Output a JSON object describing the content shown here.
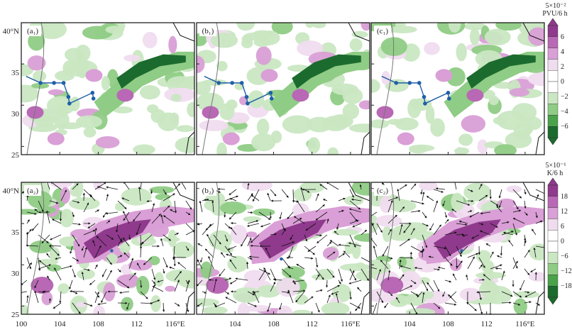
{
  "rows": [
    {
      "units_line1": "5×10⁻²",
      "units_line2": "PVU/6 h",
      "panels": [
        {
          "label": "(a₁)"
        },
        {
          "label": "(b₁)"
        },
        {
          "label": "(c₁)"
        }
      ],
      "colorbar_ticks": [
        "6",
        "4",
        "2",
        "0",
        "−2",
        "−4",
        "−6"
      ]
    },
    {
      "units_line1": "5×10⁻¹",
      "units_line2": "K/6 h",
      "panels": [
        {
          "label": "(a₂)"
        },
        {
          "label": "(b₂)"
        },
        {
          "label": "(c₂)"
        }
      ],
      "colorbar_ticks": [
        "18",
        "12",
        "6",
        "0",
        "−6",
        "−12",
        "−18"
      ]
    }
  ],
  "lat_labels": [
    "40°N",
    "35",
    "30",
    "25"
  ],
  "lon_labels": [
    "100",
    "104",
    "108",
    "112",
    "116°E"
  ],
  "colors": {
    "pos_1": "#f0dcef",
    "pos_2": "#d99fd6",
    "pos_3": "#b968b5",
    "pos_4": "#8f3a8c",
    "neg_1": "#c9e7c2",
    "neg_2": "#8fcc85",
    "neg_3": "#4aa24a",
    "neg_4": "#1c6b2e",
    "track": "#1f5fa8"
  },
  "map_data": {
    "lon_range": [
      100,
      118
    ],
    "lat_range": [
      25,
      41
    ],
    "track_points": [
      {
        "lon": 100.5,
        "lat": 34.5
      },
      {
        "lon": 102.0,
        "lat": 33.7
      },
      {
        "lon": 103.4,
        "lat": 33.7
      },
      {
        "lon": 104.4,
        "lat": 33.7
      },
      {
        "lon": 104.9,
        "lat": 32.0
      },
      {
        "lon": 105.0,
        "lat": 31.2
      },
      {
        "lon": 107.4,
        "lat": 32.5
      },
      {
        "lon": 107.5,
        "lat": 31.8
      }
    ]
  }
}
